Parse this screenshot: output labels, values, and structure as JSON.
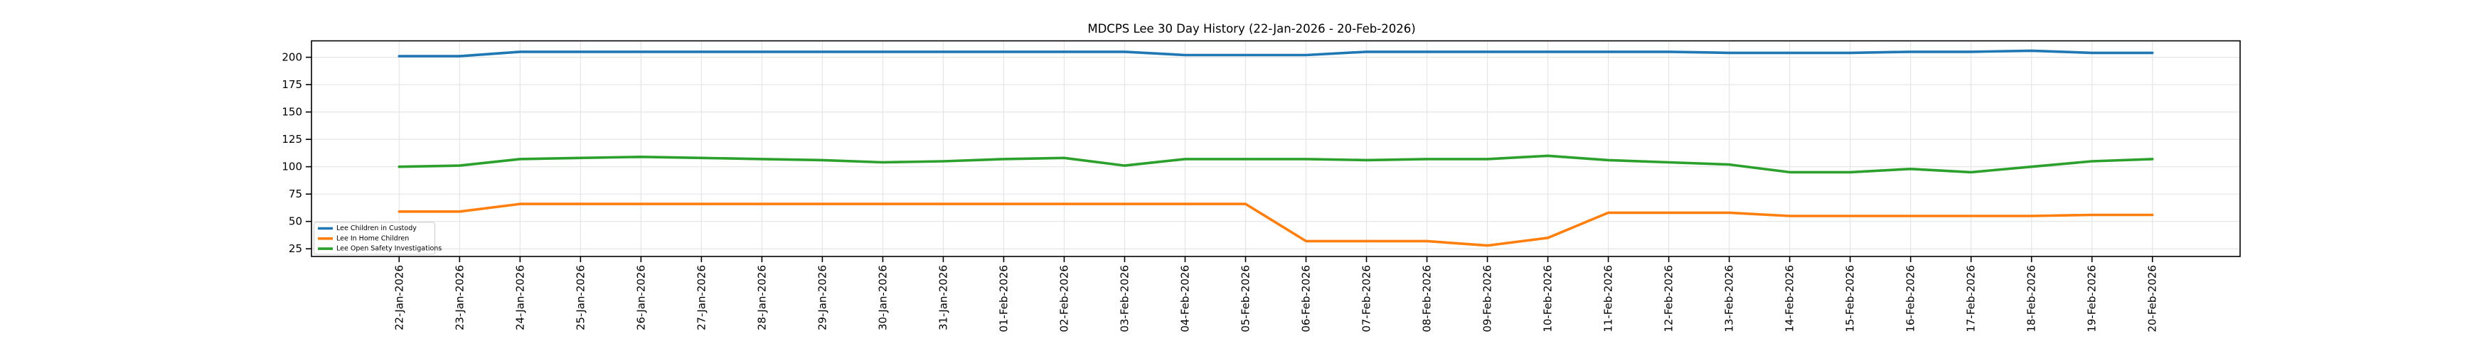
{
  "chart_data": {
    "type": "line",
    "title": "MDCPS Lee 30 Day History (22-Jan-2026 - 20-Feb-2026)",
    "xlabel": "",
    "ylabel": "",
    "grid": true,
    "legend_position": "lower-left",
    "background_color": "#ffffff",
    "grid_color": "#e5e5e5",
    "axis_color": "#000000",
    "y_ticks": [
      25,
      50,
      75,
      100,
      125,
      150,
      175,
      200
    ],
    "ylim": [
      18,
      215
    ],
    "categories": [
      "22-Jan-2026",
      "23-Jan-2026",
      "24-Jan-2026",
      "25-Jan-2026",
      "26-Jan-2026",
      "27-Jan-2026",
      "28-Jan-2026",
      "29-Jan-2026",
      "30-Jan-2026",
      "31-Jan-2026",
      "01-Feb-2026",
      "02-Feb-2026",
      "03-Feb-2026",
      "04-Feb-2026",
      "05-Feb-2026",
      "06-Feb-2026",
      "07-Feb-2026",
      "08-Feb-2026",
      "09-Feb-2026",
      "10-Feb-2026",
      "11-Feb-2026",
      "12-Feb-2026",
      "13-Feb-2026",
      "14-Feb-2026",
      "15-Feb-2026",
      "16-Feb-2026",
      "17-Feb-2026",
      "18-Feb-2026",
      "19-Feb-2026",
      "20-Feb-2026"
    ],
    "series": [
      {
        "name": "Lee Children in Custody",
        "color": "#1f77b4",
        "values": [
          201,
          201,
          205,
          205,
          205,
          205,
          205,
          205,
          205,
          205,
          205,
          205,
          205,
          202,
          202,
          202,
          205,
          205,
          205,
          205,
          205,
          205,
          204,
          204,
          204,
          205,
          205,
          206,
          204,
          204
        ]
      },
      {
        "name": "Lee In Home Children",
        "color": "#ff7f0e",
        "values": [
          59,
          59,
          66,
          66,
          66,
          66,
          66,
          66,
          66,
          66,
          66,
          66,
          66,
          66,
          66,
          32,
          32,
          32,
          28,
          35,
          58,
          58,
          58,
          55,
          55,
          55,
          55,
          55,
          56,
          56
        ]
      },
      {
        "name": "Lee Open Safety Investigations",
        "color": "#2ca02c",
        "values": [
          100,
          101,
          107,
          108,
          109,
          108,
          107,
          106,
          104,
          105,
          107,
          108,
          101,
          107,
          107,
          107,
          106,
          107,
          107,
          110,
          106,
          104,
          102,
          95,
          95,
          98,
          95,
          100,
          105,
          107
        ]
      }
    ]
  }
}
